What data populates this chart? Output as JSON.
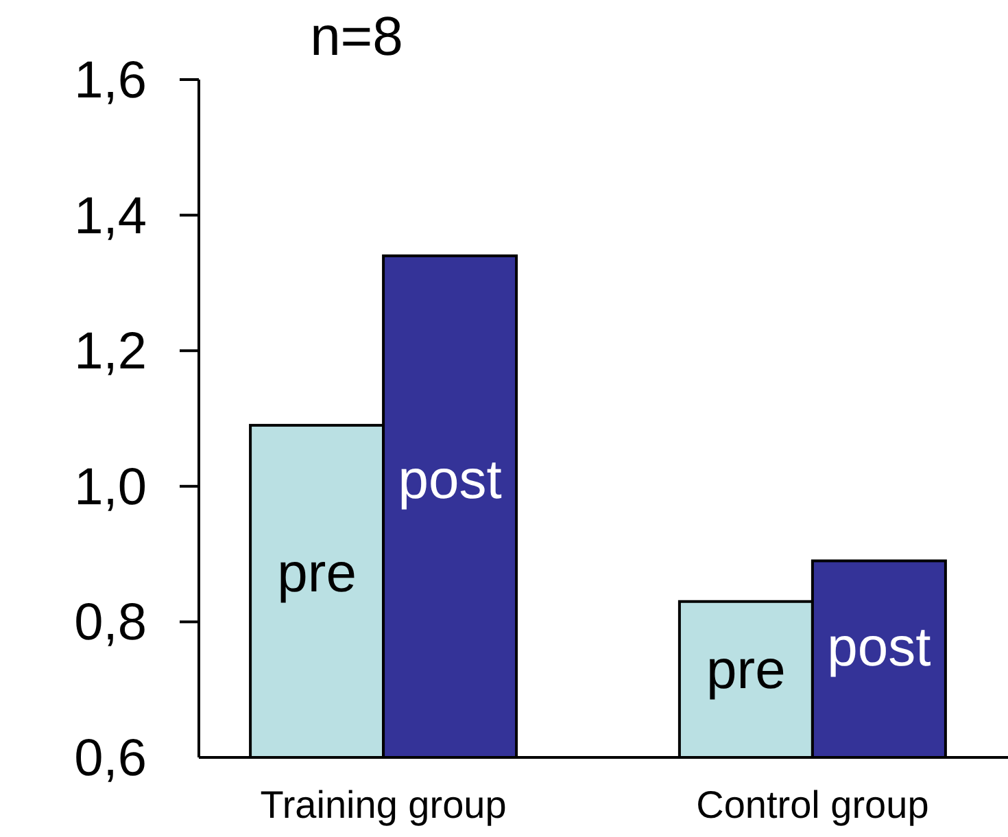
{
  "chart_data": {
    "type": "bar",
    "title": "n=8",
    "categories": [
      "Training group",
      "Control group"
    ],
    "series": [
      {
        "name": "pre",
        "color": "#bae0e3",
        "values": [
          1.09,
          0.83
        ]
      },
      {
        "name": "post",
        "color": "#343398",
        "values": [
          1.34,
          0.89
        ]
      }
    ],
    "ylim": [
      0.6,
      1.6
    ],
    "yticks": [
      {
        "value": 0.6,
        "label": "0,6"
      },
      {
        "value": 0.8,
        "label": "0,8"
      },
      {
        "value": 1.0,
        "label": "1,0"
      },
      {
        "value": 1.2,
        "label": "1,2"
      },
      {
        "value": 1.4,
        "label": "1,4"
      },
      {
        "value": 1.6,
        "label": "1,6"
      }
    ],
    "grid": false,
    "legend": false
  }
}
